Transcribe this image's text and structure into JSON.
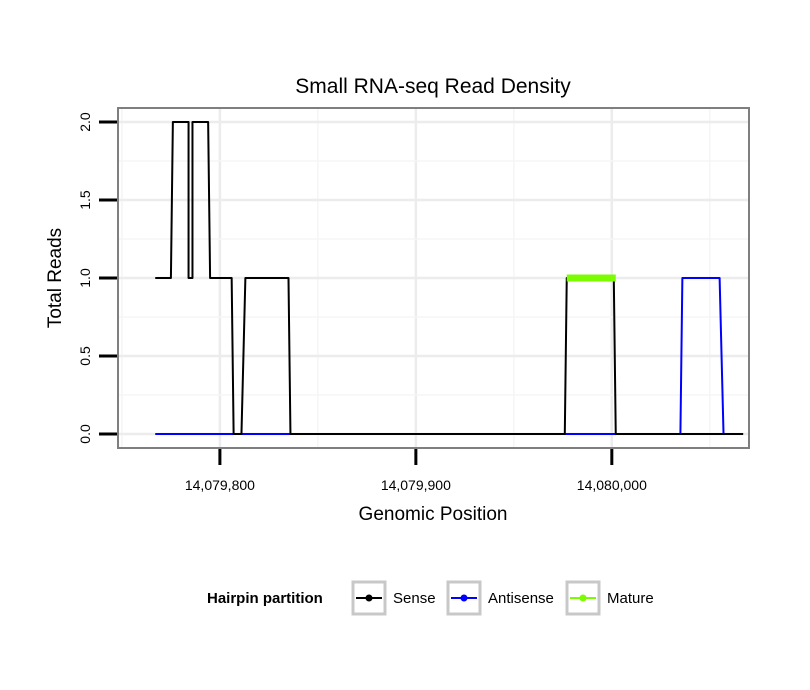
{
  "chart_data": {
    "type": "line",
    "title": "Small RNA-seq Read Density",
    "xlabel": "Genomic Position",
    "ylabel": "Total Reads",
    "xlim": [
      14079748,
      14080070
    ],
    "ylim": [
      -0.09,
      2.09
    ],
    "x_ticks": [
      14079800,
      14079900,
      14080000
    ],
    "x_tick_labels": [
      "14,079,800",
      "14,079,900",
      "14,080,000"
    ],
    "y_ticks": [
      0,
      0.5,
      1,
      1.5,
      2
    ],
    "y_tick_labels": [
      "0.0",
      "0.5",
      "1.0",
      "1.5",
      "2.0"
    ],
    "grid": true,
    "legend": {
      "position": "bottom",
      "title": "Hairpin partition",
      "entries": [
        "Sense",
        "Antisense",
        "Mature"
      ]
    },
    "series": [
      {
        "name": "Sense",
        "color": "#000000",
        "x": [
          14079767,
          14079775,
          14079776,
          14079784,
          14079784,
          14079786,
          14079786,
          14079794,
          14079795,
          14079806,
          14079807,
          14079811,
          14079813,
          14079835,
          14079836,
          14079976,
          14079977,
          14080001,
          14080002,
          14080067
        ],
        "y": [
          1,
          1,
          2,
          2,
          1,
          1,
          2,
          2,
          1,
          1,
          0,
          0,
          1,
          1,
          0,
          0,
          1,
          1,
          0,
          0
        ]
      },
      {
        "name": "Antisense",
        "color": "#0000ff",
        "x": [
          14079767,
          14080035,
          14080036,
          14080055,
          14080057,
          14080067
        ],
        "y": [
          0,
          0,
          1,
          1,
          0,
          0
        ]
      },
      {
        "name": "Mature",
        "color": "#7cfc00",
        "x": [
          14079977,
          14080002
        ],
        "y": [
          1,
          1
        ]
      }
    ]
  }
}
